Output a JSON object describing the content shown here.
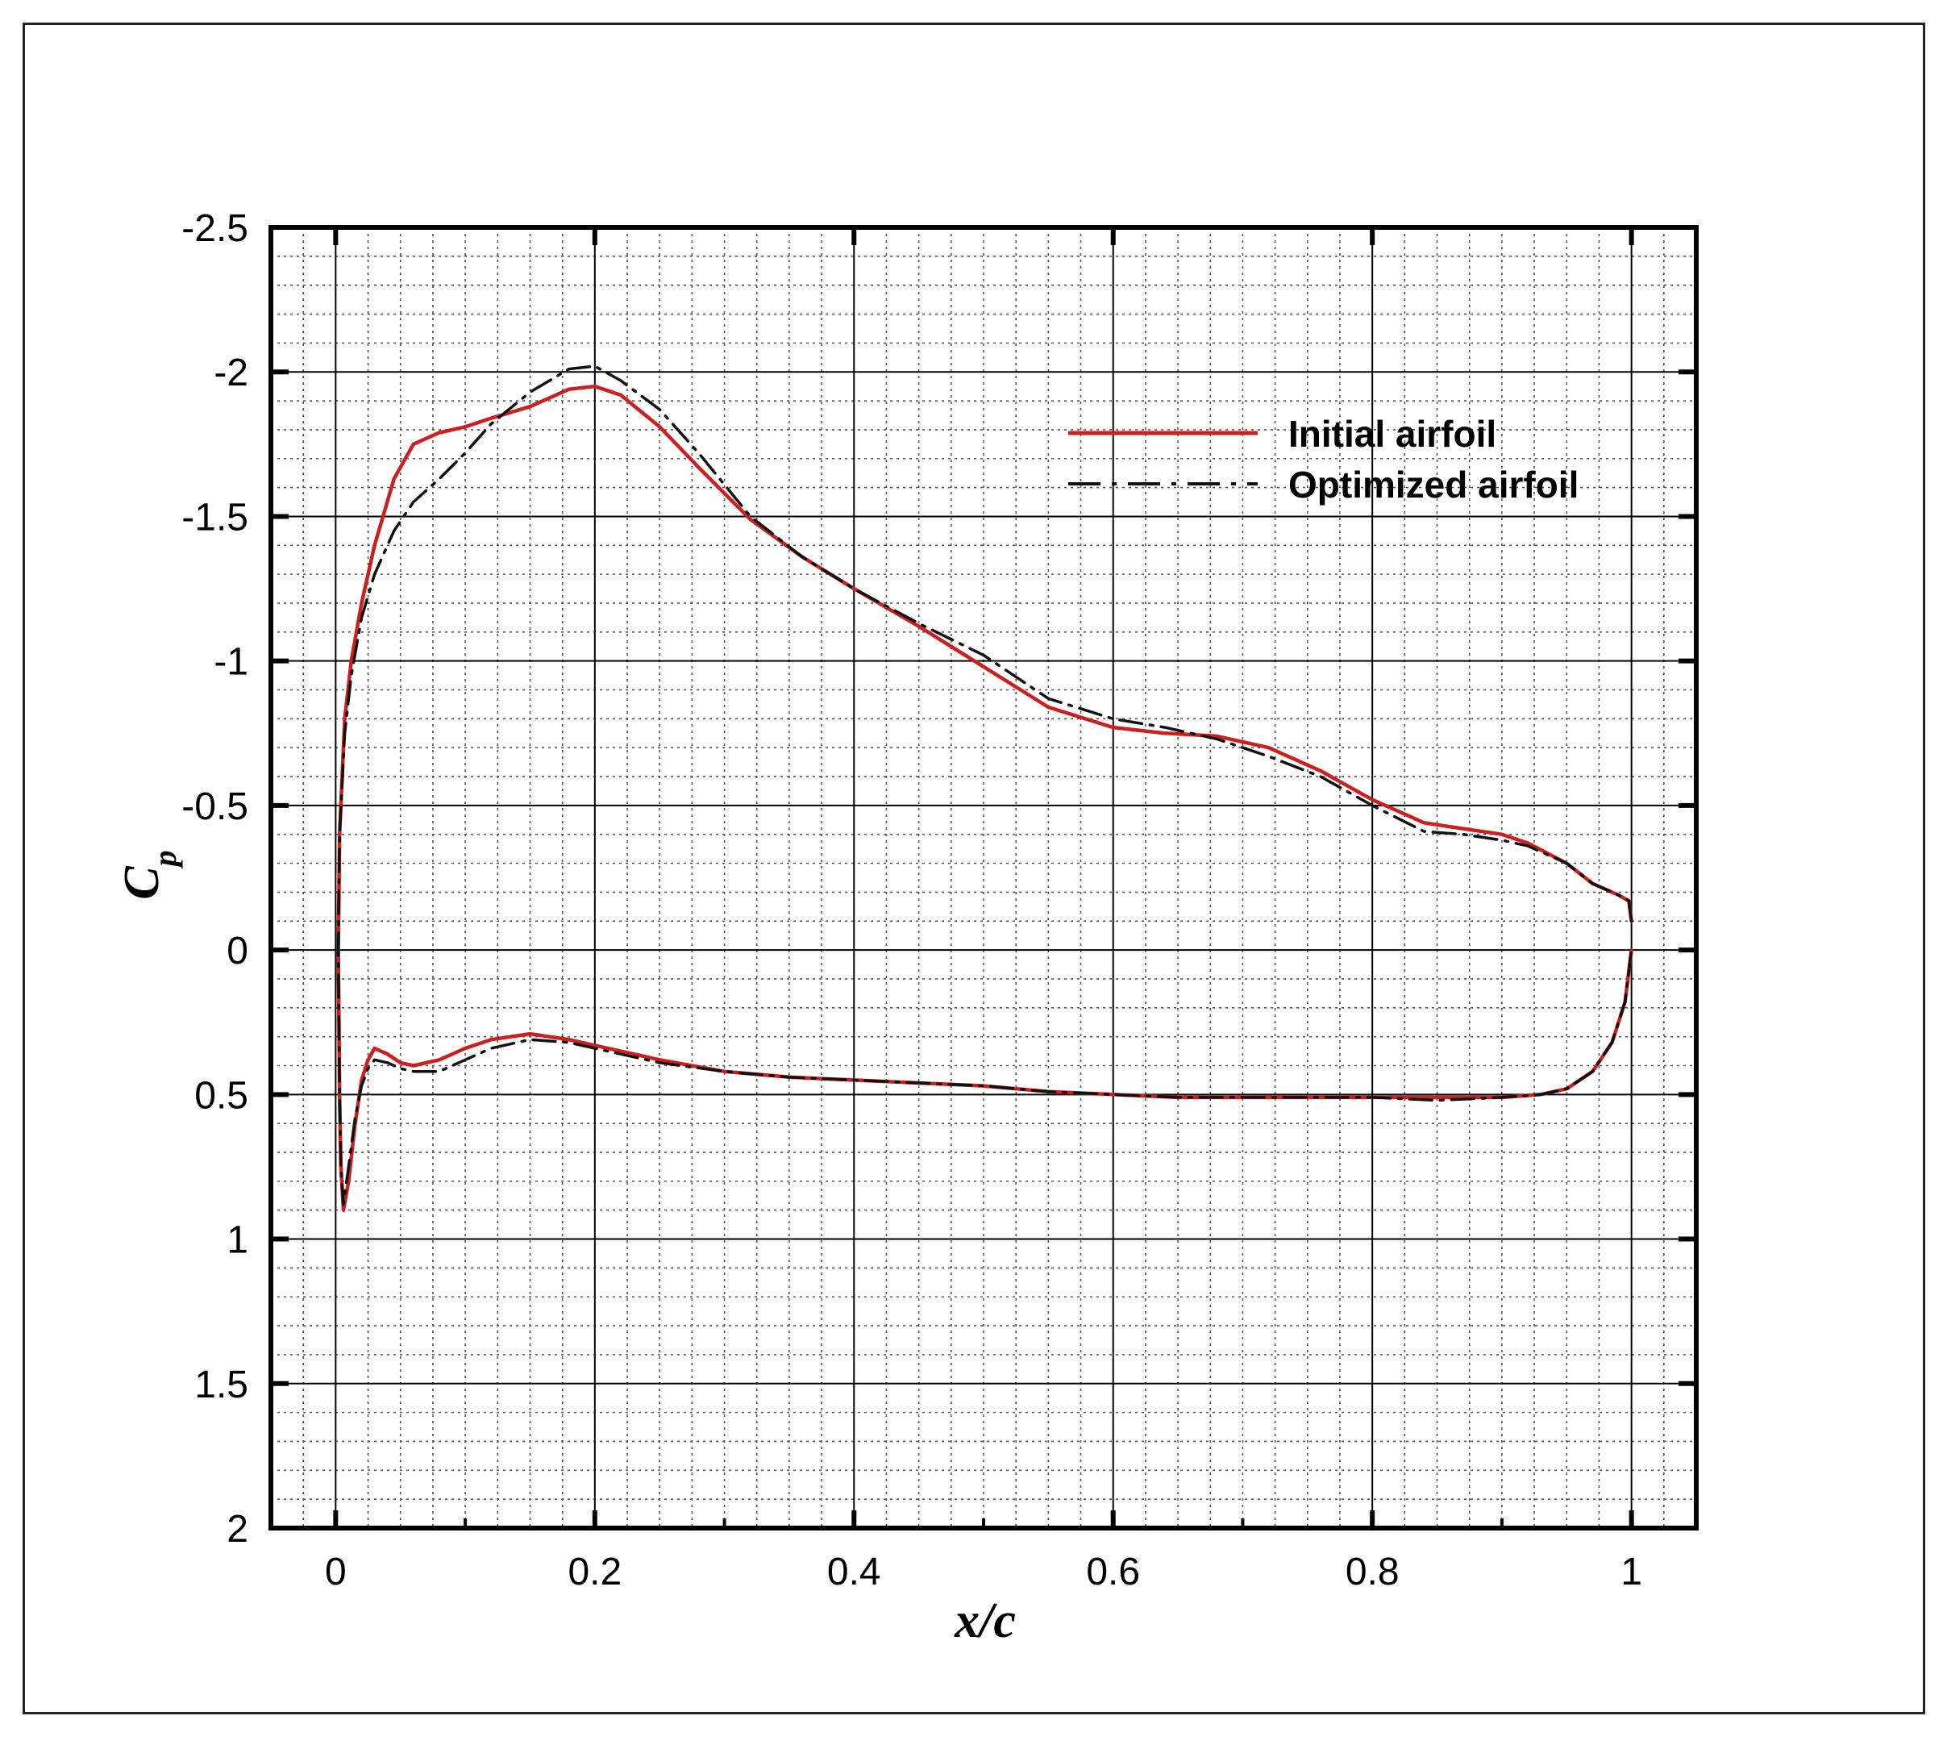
{
  "chart_data": {
    "type": "line",
    "xlabel": "x/c",
    "ylabel": "C",
    "ylabel_subscript": "p",
    "xlim": [
      -0.05,
      1.05
    ],
    "ylim": [
      -2.5,
      2
    ],
    "y_inverted": true,
    "grid": true,
    "legend_position": "upper-right",
    "x_ticks": [
      "0",
      "0.2",
      "0.4",
      "0.6",
      "0.8",
      "1"
    ],
    "x_tick_values": [
      0,
      0.2,
      0.4,
      0.6,
      0.8,
      1
    ],
    "y_ticks": [
      "-2.5",
      "-2",
      "-1.5",
      "-1",
      "-0.5",
      "0",
      "0.5",
      "1",
      "1.5",
      "2"
    ],
    "y_tick_values": [
      -2.5,
      -2,
      -1.5,
      -1,
      -0.5,
      0,
      0.5,
      1,
      1.5,
      2
    ],
    "series": [
      {
        "name": "Initial airfoil",
        "color": "#cc1f1f",
        "style": "solid",
        "x": [
          1.0,
          0.998,
          0.99,
          0.97,
          0.95,
          0.92,
          0.9,
          0.87,
          0.84,
          0.8,
          0.76,
          0.72,
          0.68,
          0.64,
          0.6,
          0.55,
          0.5,
          0.45,
          0.4,
          0.36,
          0.32,
          0.28,
          0.25,
          0.22,
          0.2,
          0.18,
          0.15,
          0.12,
          0.1,
          0.08,
          0.06,
          0.045,
          0.03,
          0.02,
          0.012,
          0.007,
          0.003,
          0.002,
          0.003,
          0.004,
          0.006,
          0.01,
          0.015,
          0.02,
          0.025,
          0.03,
          0.04,
          0.05,
          0.06,
          0.08,
          0.1,
          0.12,
          0.15,
          0.18,
          0.2,
          0.25,
          0.3,
          0.35,
          0.4,
          0.45,
          0.5,
          0.55,
          0.6,
          0.65,
          0.7,
          0.75,
          0.8,
          0.85,
          0.9,
          0.93,
          0.95,
          0.97,
          0.985,
          0.995,
          1.0
        ],
        "y": [
          -0.1,
          -0.17,
          -0.19,
          -0.23,
          -0.3,
          -0.37,
          -0.4,
          -0.42,
          -0.44,
          -0.52,
          -0.62,
          -0.7,
          -0.74,
          -0.75,
          -0.77,
          -0.84,
          -0.98,
          -1.12,
          -1.25,
          -1.36,
          -1.49,
          -1.67,
          -1.81,
          -1.92,
          -1.95,
          -1.94,
          -1.88,
          -1.84,
          -1.81,
          -1.79,
          -1.75,
          -1.63,
          -1.4,
          -1.2,
          -1.0,
          -0.8,
          -0.4,
          0.0,
          0.5,
          0.75,
          0.9,
          0.8,
          0.6,
          0.45,
          0.38,
          0.34,
          0.36,
          0.39,
          0.4,
          0.38,
          0.34,
          0.31,
          0.29,
          0.31,
          0.33,
          0.38,
          0.42,
          0.44,
          0.45,
          0.46,
          0.47,
          0.49,
          0.5,
          0.51,
          0.51,
          0.51,
          0.51,
          0.51,
          0.51,
          0.5,
          0.48,
          0.42,
          0.32,
          0.18,
          0.0
        ]
      },
      {
        "name": "Optimized airfoil",
        "color": "#111111",
        "style": "dash-dot",
        "x": [
          1.0,
          0.998,
          0.99,
          0.97,
          0.95,
          0.92,
          0.9,
          0.87,
          0.84,
          0.8,
          0.76,
          0.72,
          0.68,
          0.64,
          0.6,
          0.55,
          0.5,
          0.45,
          0.4,
          0.36,
          0.32,
          0.28,
          0.25,
          0.22,
          0.2,
          0.18,
          0.15,
          0.12,
          0.1,
          0.08,
          0.06,
          0.045,
          0.03,
          0.02,
          0.012,
          0.007,
          0.003,
          0.002,
          0.003,
          0.004,
          0.006,
          0.01,
          0.015,
          0.02,
          0.025,
          0.03,
          0.04,
          0.05,
          0.06,
          0.08,
          0.1,
          0.12,
          0.15,
          0.18,
          0.2,
          0.25,
          0.3,
          0.35,
          0.4,
          0.45,
          0.5,
          0.55,
          0.6,
          0.65,
          0.7,
          0.75,
          0.8,
          0.85,
          0.9,
          0.93,
          0.95,
          0.97,
          0.985,
          0.995,
          1.0
        ],
        "y": [
          -0.1,
          -0.17,
          -0.19,
          -0.23,
          -0.3,
          -0.36,
          -0.38,
          -0.4,
          -0.41,
          -0.5,
          -0.6,
          -0.67,
          -0.73,
          -0.77,
          -0.8,
          -0.87,
          -1.02,
          -1.13,
          -1.25,
          -1.36,
          -1.5,
          -1.72,
          -1.87,
          -1.97,
          -2.02,
          -2.01,
          -1.93,
          -1.82,
          -1.72,
          -1.63,
          -1.55,
          -1.45,
          -1.3,
          -1.15,
          -0.95,
          -0.75,
          -0.4,
          0.0,
          0.5,
          0.75,
          0.88,
          0.75,
          0.58,
          0.47,
          0.41,
          0.38,
          0.39,
          0.41,
          0.42,
          0.42,
          0.38,
          0.34,
          0.31,
          0.32,
          0.34,
          0.39,
          0.42,
          0.44,
          0.45,
          0.46,
          0.47,
          0.49,
          0.5,
          0.51,
          0.51,
          0.51,
          0.51,
          0.52,
          0.51,
          0.5,
          0.48,
          0.42,
          0.32,
          0.18,
          0.0
        ]
      }
    ]
  }
}
